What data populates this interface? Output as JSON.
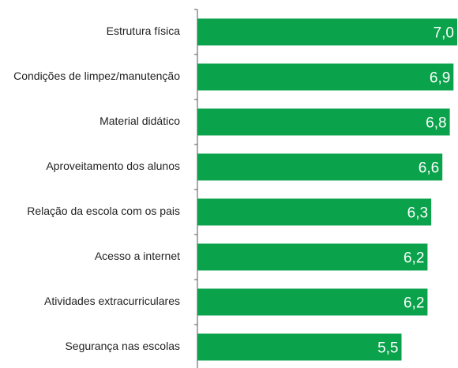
{
  "chart_data": {
    "type": "bar",
    "orientation": "horizontal",
    "categories": [
      "Estrutura física",
      "Condições de limpez/manutenção",
      "Material didático",
      "Aproveitamento dos alunos",
      "Relação da escola com os pais",
      "Acesso a internet",
      "Atividades extracurriculares",
      "Segurança nas escolas"
    ],
    "values": [
      7.0,
      6.9,
      6.8,
      6.6,
      6.3,
      6.2,
      6.2,
      5.5
    ],
    "value_labels": [
      "7,0",
      "6,9",
      "6,8",
      "6,6",
      "6,3",
      "6,2",
      "6,2",
      "5,5"
    ],
    "color": "#0aa24b",
    "xlim": [
      0,
      7
    ]
  }
}
